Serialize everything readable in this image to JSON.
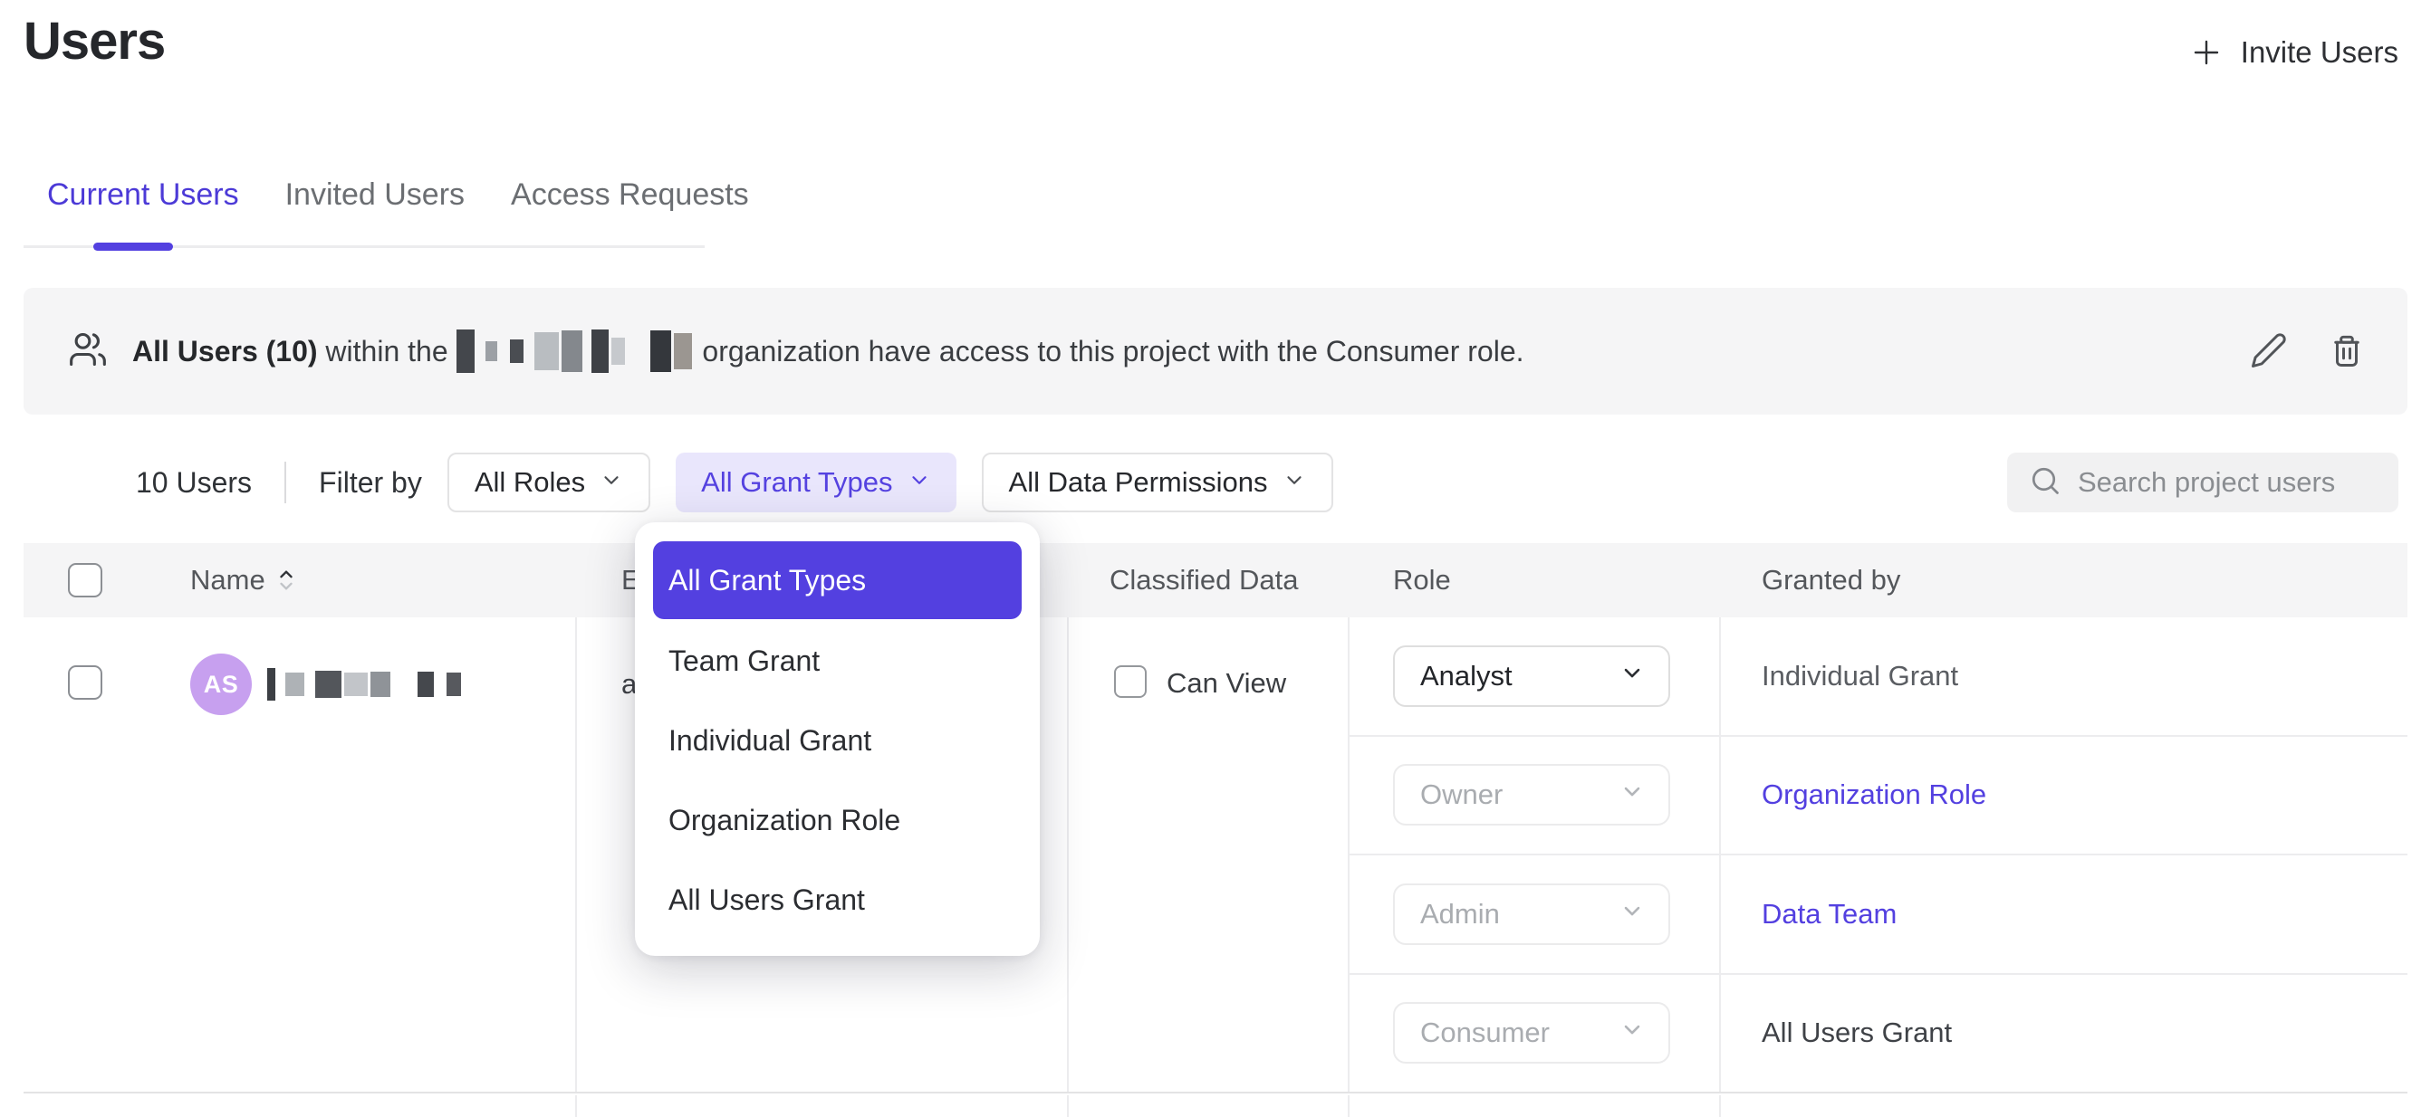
{
  "colors": {
    "accent_purple": "#5340e0",
    "accent_purple_light": "#e9e6fc",
    "avatar_purple": "#c7a0ef",
    "banner_gray": "#f5f5f6"
  },
  "page": {
    "title": "Users"
  },
  "header": {
    "invite_button_label": "Invite Users"
  },
  "tabs": {
    "items": [
      {
        "label": "Current Users",
        "active": true
      },
      {
        "label": "Invited Users",
        "active": false
      },
      {
        "label": "Access Requests",
        "active": false
      }
    ]
  },
  "banner": {
    "bold_text": "All Users (10)",
    "pre_text": " within the ",
    "post_text": " organization have access to this project with the Consumer role.",
    "redacted_org_blocks": [
      {
        "w": 20,
        "h": 48,
        "c": "#44474c"
      },
      {
        "w": 6,
        "gap": true
      },
      {
        "w": 13,
        "h": 22,
        "c": "#9ca0a5"
      },
      {
        "w": 8,
        "gap": true
      },
      {
        "w": 15,
        "h": 26,
        "c": "#4a4d52"
      },
      {
        "w": 6,
        "gap": true
      },
      {
        "w": 27,
        "h": 42,
        "c": "#b9bdc1"
      },
      {
        "w": 23,
        "h": 46,
        "c": "#84888d"
      },
      {
        "w": 4,
        "gap": true
      },
      {
        "w": 19,
        "h": 48,
        "c": "#3e4146"
      },
      {
        "w": 15,
        "h": 30,
        "c": "#c6c9cd"
      },
      {
        "w": 22,
        "gap": true
      },
      {
        "w": 23,
        "h": 46,
        "c": "#34373c"
      },
      {
        "w": 20,
        "h": 40,
        "c": "#9b9691"
      }
    ]
  },
  "filters": {
    "count_label": "10 Users",
    "filter_by_label": "Filter by",
    "roles_button": "All Roles",
    "grant_types_button": "All Grant Types",
    "data_permissions_button": "All Data Permissions"
  },
  "search": {
    "placeholder": "Search project users"
  },
  "grant_type_dropdown": {
    "items": [
      {
        "label": "All Grant Types",
        "selected": true
      },
      {
        "label": "Team Grant",
        "selected": false
      },
      {
        "label": "Individual Grant",
        "selected": false
      },
      {
        "label": "Organization Role",
        "selected": false
      },
      {
        "label": "All Users Grant",
        "selected": false
      }
    ]
  },
  "table": {
    "headers": {
      "name": "Name",
      "email": "Email",
      "classified_data": "Classified Data",
      "role": "Role",
      "granted_by": "Granted by"
    },
    "row": {
      "avatar_initials": "AS",
      "email_visible": "a",
      "classified_label": "Can View",
      "redacted_name_blocks": [
        {
          "w": 9,
          "h": 36,
          "c": "#3c3f44"
        },
        {
          "w": 5,
          "gap": true
        },
        {
          "w": 21,
          "h": 26,
          "c": "#aeb2b6"
        },
        {
          "w": 6,
          "gap": true
        },
        {
          "w": 29,
          "h": 30,
          "c": "#53565b"
        },
        {
          "w": 26,
          "h": 26,
          "c": "#c2c5c9"
        },
        {
          "w": 22,
          "h": 28,
          "c": "#8f9398"
        },
        {
          "w": 24,
          "gap": true
        },
        {
          "w": 18,
          "h": 28,
          "c": "#45484d"
        },
        {
          "w": 8,
          "gap": true
        },
        {
          "w": 16,
          "h": 26,
          "c": "#57595e"
        }
      ],
      "grants": [
        {
          "role": "Analyst",
          "granted_by": "Individual Grant"
        },
        {
          "role": "Owner",
          "granted_by": "Organization Role"
        },
        {
          "role": "Admin",
          "granted_by": "Data Team"
        },
        {
          "role": "Consumer",
          "granted_by": "All Users Grant"
        }
      ]
    }
  }
}
